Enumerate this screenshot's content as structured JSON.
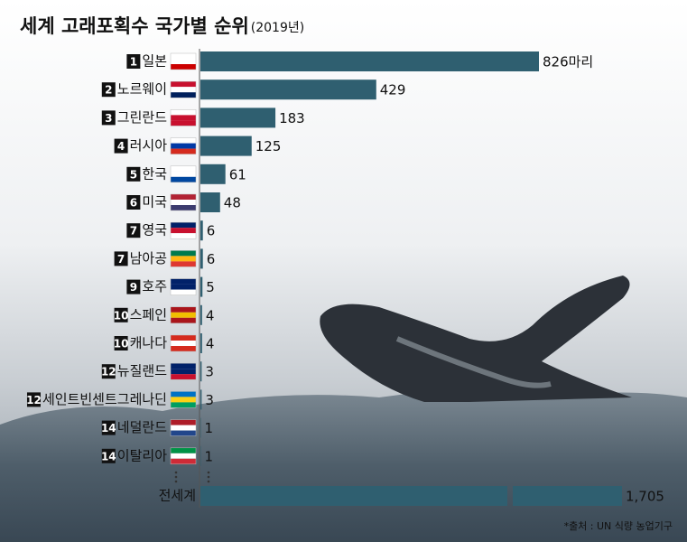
{
  "chart_data": {
    "type": "bar",
    "orientation": "horizontal",
    "title": "세계 고래포획수 국가별 순위",
    "title_note": "(2019년)",
    "ranks": [
      "1",
      "2",
      "3",
      "4",
      "5",
      "6",
      "7",
      "7",
      "9",
      "10",
      "10",
      "12",
      "12",
      "14",
      "14"
    ],
    "categories": [
      "일본",
      "노르웨이",
      "그린란드",
      "러시아",
      "한국",
      "미국",
      "영국",
      "남아공",
      "호주",
      "스페인",
      "캐나다",
      "뉴질랜드",
      "세인트빈센트그레나딘",
      "네덜란드",
      "이탈리아"
    ],
    "values": [
      826,
      429,
      183,
      125,
      61,
      48,
      6,
      6,
      5,
      4,
      4,
      3,
      3,
      1,
      1
    ],
    "value_labels": [
      "826마리",
      "429",
      "183",
      "125",
      "61",
      "48",
      "6",
      "6",
      "5",
      "4",
      "4",
      "3",
      "3",
      "1",
      "1"
    ],
    "color": "#2f5f70",
    "total": {
      "name": "전세계",
      "value": 1705,
      "value_label": "1,705"
    },
    "source": "*출처 : UN 식량 농업기구"
  }
}
